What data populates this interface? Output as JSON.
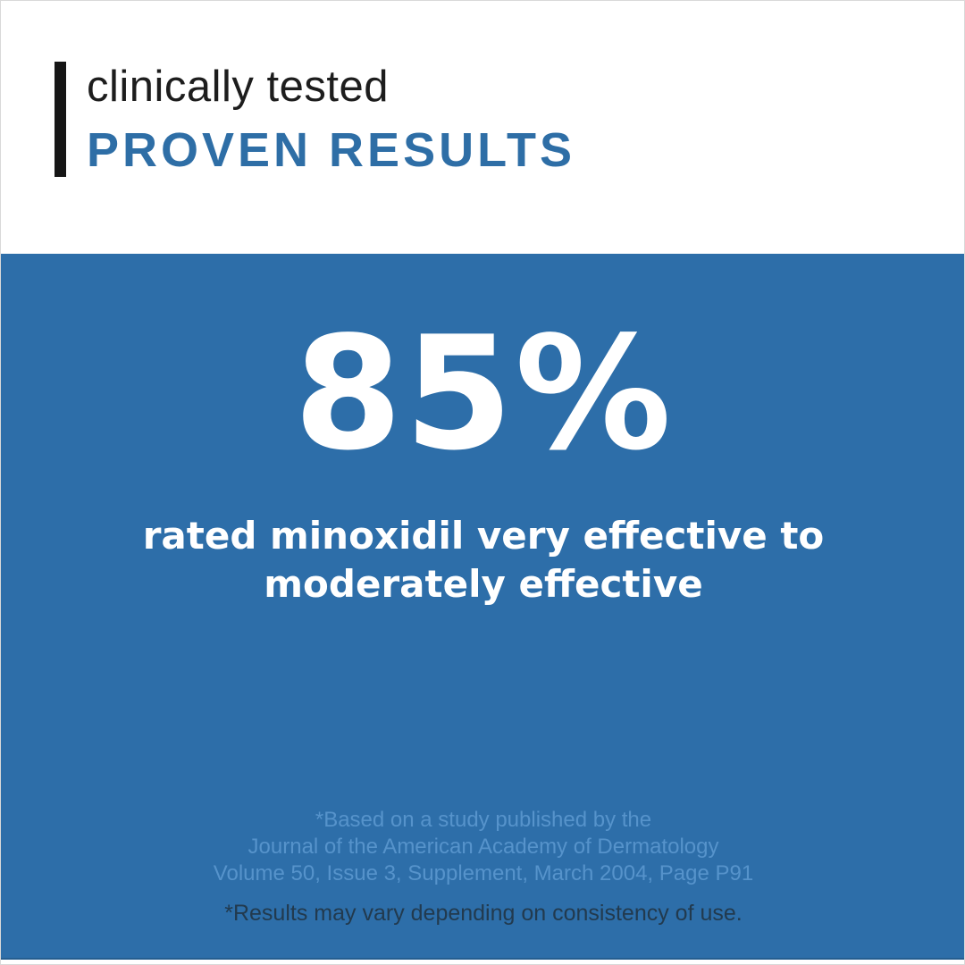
{
  "header": {
    "subtitle": "clinically tested",
    "title": "PROVEN RESULTS",
    "accent_bar_color": "#161616",
    "subtitle_color": "#1d1d1d",
    "title_color": "#2e6ea6"
  },
  "stat_panel": {
    "background_color": "#2d6ea9",
    "text_color": "#ffffff",
    "stat_value": "85%",
    "description_lines": [
      "rated minoxidil very effective to",
      "moderately effective"
    ],
    "citation": {
      "color": "#5693cb",
      "lines": [
        "*Based on a study published by the",
        "Journal of the American Academy of Dermatology",
        "Volume 50, Issue 3, Supplement, March 2004, Page P91"
      ]
    },
    "disclaimer": {
      "color": "#223a4e",
      "text": "*Results may vary depending on consistency of use."
    }
  }
}
